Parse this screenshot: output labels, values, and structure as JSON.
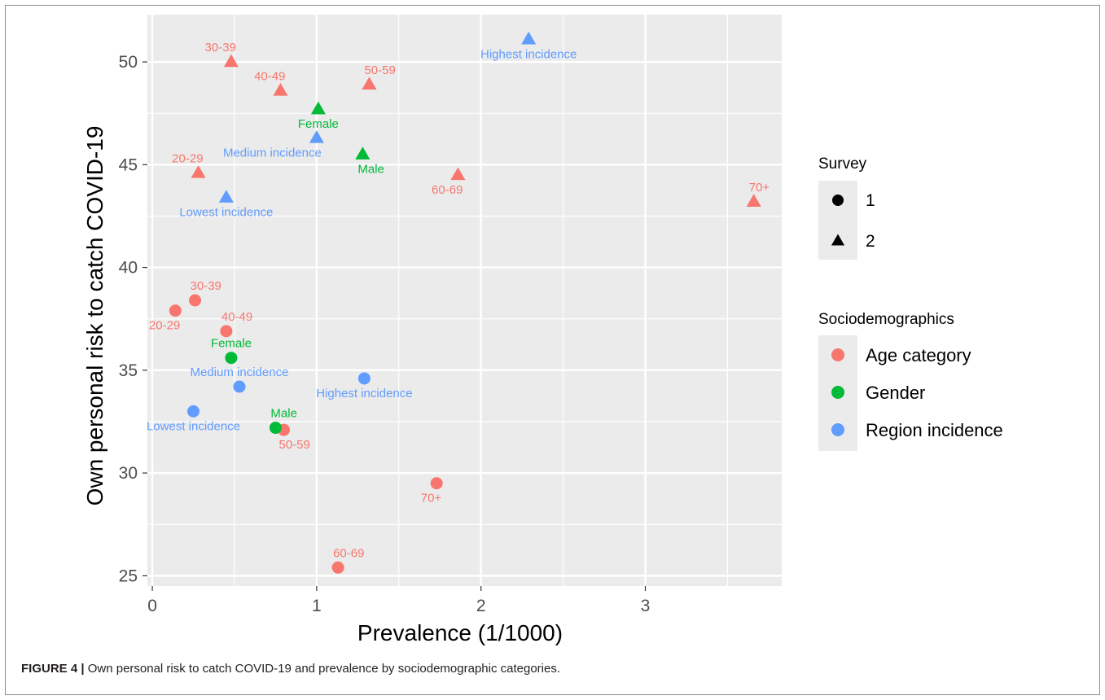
{
  "caption": {
    "label": "FIGURE 4 |",
    "text": " Own personal risk to catch COVID-19 and prevalence by sociodemographic categories."
  },
  "chart_data": {
    "type": "scatter",
    "xlabel": "Prevalence (1/1000)",
    "ylabel": "Own personal risk to catch COVID-19",
    "xlim": [
      -0.03,
      3.83
    ],
    "ylim": [
      24.5,
      52.3
    ],
    "xticks": [
      0,
      1,
      2,
      3
    ],
    "yticks": [
      25,
      30,
      35,
      40,
      45,
      50
    ],
    "grid": true,
    "colors": {
      "Age category": "#f8766d",
      "Gender": "#00ba38",
      "Region incidence": "#619cff",
      "panel": "#ebebeb",
      "grid": "#ffffff"
    },
    "legends": [
      {
        "title": "Survey",
        "placement": "right",
        "entries": [
          {
            "label": "1",
            "shape": "circle"
          },
          {
            "label": "2",
            "shape": "triangle"
          }
        ]
      },
      {
        "title": "Sociodemographics",
        "placement": "right",
        "entries": [
          {
            "label": "Age category"
          },
          {
            "label": "Gender"
          },
          {
            "label": "Region incidence"
          }
        ]
      }
    ],
    "points": [
      {
        "survey": "1",
        "group": "Age category",
        "label": "20-29",
        "x": 0.14,
        "y": 37.9,
        "label_pos": "below-left"
      },
      {
        "survey": "1",
        "group": "Age category",
        "label": "30-39",
        "x": 0.26,
        "y": 38.4,
        "label_pos": "above-right"
      },
      {
        "survey": "1",
        "group": "Age category",
        "label": "40-49",
        "x": 0.45,
        "y": 36.9,
        "label_pos": "above-right"
      },
      {
        "survey": "1",
        "group": "Age category",
        "label": "50-59",
        "x": 0.8,
        "y": 32.1,
        "label_pos": "below-right"
      },
      {
        "survey": "1",
        "group": "Age category",
        "label": "60-69",
        "x": 1.13,
        "y": 25.4,
        "label_pos": "above-right"
      },
      {
        "survey": "1",
        "group": "Age category",
        "label": "70+",
        "x": 1.73,
        "y": 29.5,
        "label_pos": "below-left"
      },
      {
        "survey": "1",
        "group": "Gender",
        "label": "Female",
        "x": 0.48,
        "y": 35.6,
        "label_pos": "above"
      },
      {
        "survey": "1",
        "group": "Gender",
        "label": "Male",
        "x": 0.75,
        "y": 32.2,
        "label_pos": "above-right"
      },
      {
        "survey": "1",
        "group": "Region incidence",
        "label": "Lowest incidence",
        "x": 0.25,
        "y": 33.0,
        "label_pos": "below"
      },
      {
        "survey": "1",
        "group": "Region incidence",
        "label": "Medium incidence",
        "x": 0.53,
        "y": 34.2,
        "label_pos": "above"
      },
      {
        "survey": "1",
        "group": "Region incidence",
        "label": "Highest incidence",
        "x": 1.29,
        "y": 34.6,
        "label_pos": "below"
      },
      {
        "survey": "2",
        "group": "Age category",
        "label": "20-29",
        "x": 0.28,
        "y": 44.6,
        "label_pos": "above-left"
      },
      {
        "survey": "2",
        "group": "Age category",
        "label": "30-39",
        "x": 0.48,
        "y": 50.0,
        "label_pos": "above-left"
      },
      {
        "survey": "2",
        "group": "Age category",
        "label": "40-49",
        "x": 0.78,
        "y": 48.6,
        "label_pos": "above-left"
      },
      {
        "survey": "2",
        "group": "Age category",
        "label": "50-59",
        "x": 1.32,
        "y": 48.9,
        "label_pos": "above-right"
      },
      {
        "survey": "2",
        "group": "Age category",
        "label": "60-69",
        "x": 1.86,
        "y": 44.5,
        "label_pos": "below-left"
      },
      {
        "survey": "2",
        "group": "Age category",
        "label": "70+",
        "x": 3.66,
        "y": 43.2,
        "label_pos": "above-right"
      },
      {
        "survey": "2",
        "group": "Gender",
        "label": "Female",
        "x": 1.01,
        "y": 47.7,
        "label_pos": "below"
      },
      {
        "survey": "2",
        "group": "Gender",
        "label": "Male",
        "x": 1.28,
        "y": 45.5,
        "label_pos": "below-right"
      },
      {
        "survey": "2",
        "group": "Region incidence",
        "label": "Lowest incidence",
        "x": 0.45,
        "y": 43.4,
        "label_pos": "below"
      },
      {
        "survey": "2",
        "group": "Region incidence",
        "label": "Medium incidence",
        "x": 1.0,
        "y": 46.3,
        "label_pos": "below-left"
      },
      {
        "survey": "2",
        "group": "Region incidence",
        "label": "Highest incidence",
        "x": 2.29,
        "y": 51.1,
        "label_pos": "below"
      }
    ]
  }
}
